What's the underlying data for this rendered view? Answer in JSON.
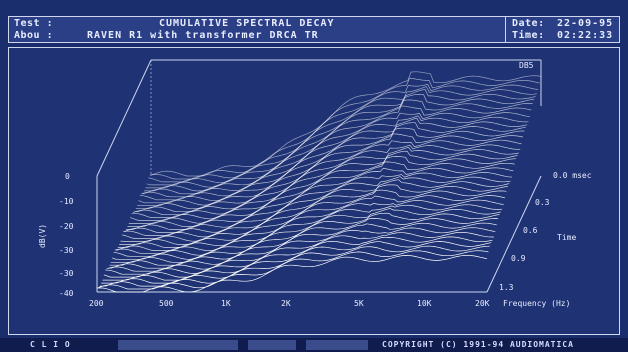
{
  "header": {
    "test_label": "Test :",
    "title": "CUMULATIVE SPECTRAL DECAY",
    "about_label": "Abou :",
    "about_value": "RAVEN R1 with transformer DRCA TR",
    "date_label": "Date:",
    "date_value": "22-09-95",
    "time_label": "Time:",
    "time_value": "02:22:33"
  },
  "plot": {
    "top_right_tag": "DB5",
    "y_axis_label": "dB(V)",
    "y_ticks": [
      "0",
      "-10",
      "-20",
      "-30",
      "-30",
      "-40"
    ],
    "x_ticks": [
      "200",
      "500",
      "1K",
      "2K",
      "5K",
      "10K",
      "20K"
    ],
    "x_axis_label": "Frequency (Hz)",
    "time_axis_label": "Time",
    "time_ticks": [
      "0.0 msec",
      "0.3",
      "0.6",
      "0.9",
      "1.3"
    ]
  },
  "status_bar": {
    "app_name": "C L I O",
    "copyright": "COPYRIGHT (C) 1991-94 AUDIOMATICA"
  },
  "colors": {
    "background": "#1a2d6c",
    "trace": "#ffffff",
    "frame": "#cfd6ee"
  }
}
